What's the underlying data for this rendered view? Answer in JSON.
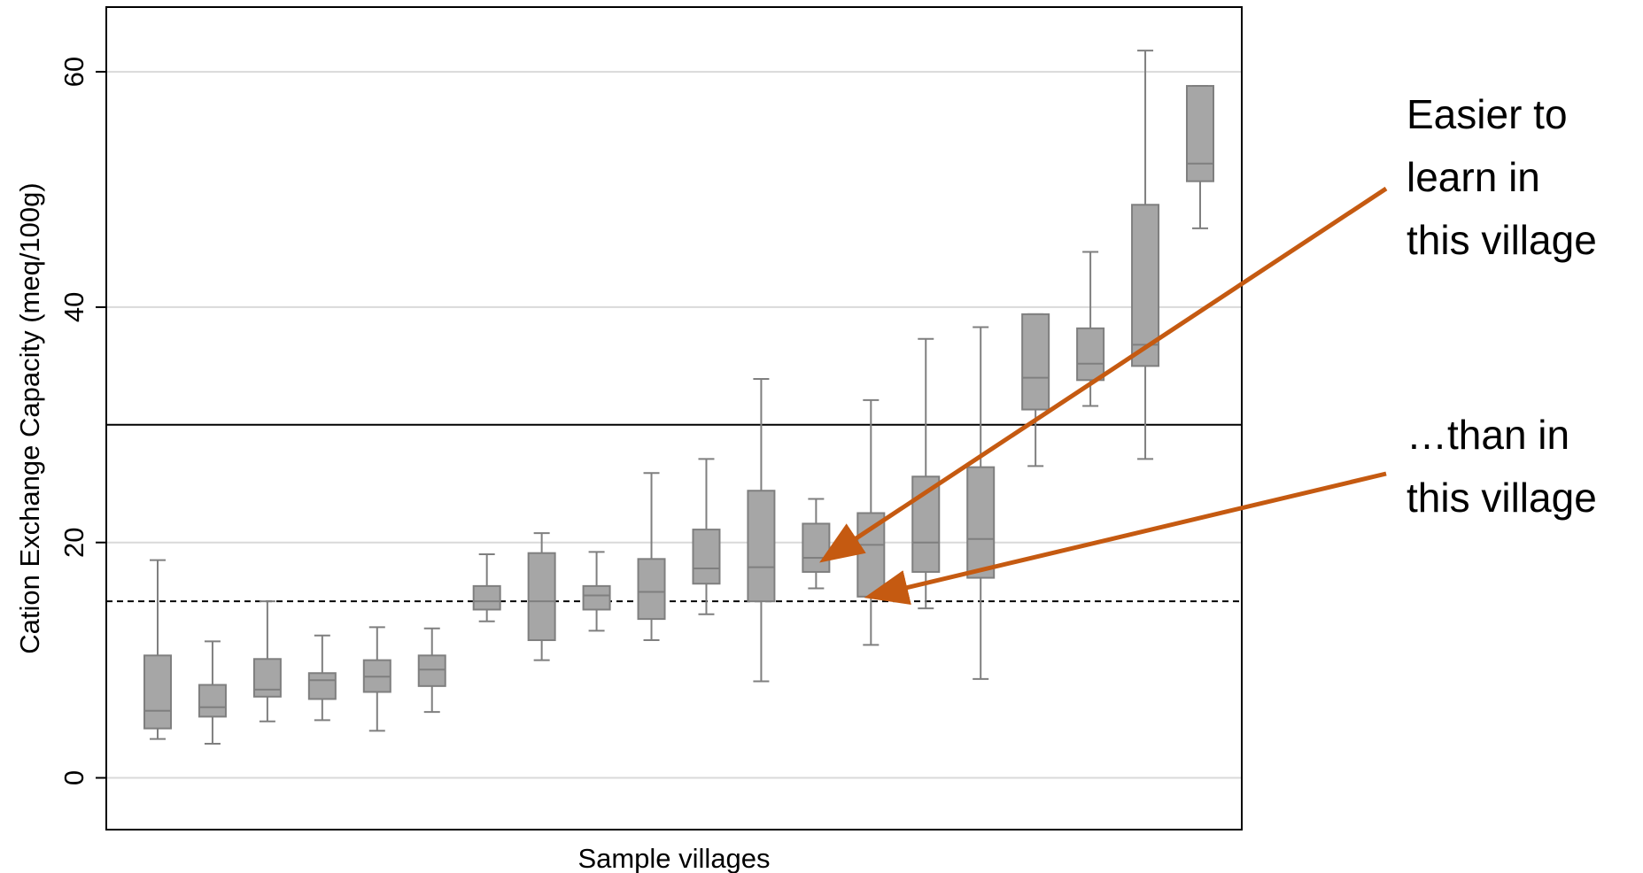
{
  "chart_data": {
    "type": "boxplot",
    "xlabel": "Sample villages",
    "ylabel": "Cation Exchange Capacity (meq/100g)",
    "ylim": [
      -4.4,
      65.5
    ],
    "yticks": [
      0,
      20,
      40,
      60
    ],
    "grid": true,
    "reference_lines": [
      {
        "value": 30,
        "style": "solid"
      },
      {
        "value": 15,
        "style": "dashed"
      }
    ],
    "colors": {
      "box_fill": "#a6a6a6",
      "box_stroke": "#7f7f7f",
      "arrow": "#c55a11",
      "ref_line": "#000000",
      "grid": "#d9d9d9"
    },
    "boxes": [
      {
        "min": 3.3,
        "q1": 4.2,
        "median": 5.7,
        "q3": 10.4,
        "max": 18.5
      },
      {
        "min": 2.9,
        "q1": 5.2,
        "median": 6.0,
        "q3": 7.9,
        "max": 11.6
      },
      {
        "min": 4.8,
        "q1": 6.9,
        "median": 7.5,
        "q3": 10.1,
        "max": 15.0
      },
      {
        "min": 4.9,
        "q1": 6.7,
        "median": 8.3,
        "q3": 8.9,
        "max": 12.1
      },
      {
        "min": 4.0,
        "q1": 7.3,
        "median": 8.6,
        "q3": 10.0,
        "max": 12.8
      },
      {
        "min": 5.6,
        "q1": 7.8,
        "median": 9.2,
        "q3": 10.4,
        "max": 12.7
      },
      {
        "min": 13.3,
        "q1": 14.3,
        "median": 15.0,
        "q3": 16.3,
        "max": 19.0
      },
      {
        "min": 10.0,
        "q1": 11.7,
        "median": 15.0,
        "q3": 19.1,
        "max": 20.8
      },
      {
        "min": 12.5,
        "q1": 14.3,
        "median": 15.5,
        "q3": 16.3,
        "max": 19.2
      },
      {
        "min": 11.7,
        "q1": 13.5,
        "median": 15.8,
        "q3": 18.6,
        "max": 25.9
      },
      {
        "min": 13.9,
        "q1": 16.5,
        "median": 17.8,
        "q3": 21.1,
        "max": 27.1
      },
      {
        "min": 8.2,
        "q1": 15.0,
        "median": 17.9,
        "q3": 24.4,
        "max": 33.9
      },
      {
        "min": 16.1,
        "q1": 17.5,
        "median": 18.7,
        "q3": 21.6,
        "max": 23.7
      },
      {
        "min": 11.3,
        "q1": 15.4,
        "median": 19.8,
        "q3": 22.5,
        "max": 32.1
      },
      {
        "min": 14.4,
        "q1": 17.5,
        "median": 20.0,
        "q3": 25.6,
        "max": 37.3
      },
      {
        "min": 8.4,
        "q1": 17.0,
        "median": 20.3,
        "q3": 26.4,
        "max": 38.3
      },
      {
        "min": 26.5,
        "q1": 31.3,
        "median": 34.0,
        "q3": 39.4,
        "max": 39.4
      },
      {
        "min": 31.6,
        "q1": 33.8,
        "median": 35.2,
        "q3": 38.2,
        "max": 44.7
      },
      {
        "min": 27.1,
        "q1": 35.0,
        "median": 36.8,
        "q3": 48.7,
        "max": 61.8
      },
      {
        "min": 46.7,
        "q1": 50.7,
        "median": 52.2,
        "q3": 58.8,
        "max": 58.8
      }
    ]
  },
  "annotations": {
    "easier": {
      "lines": [
        "Easier to",
        "learn in",
        "this village"
      ],
      "target_box": 12
    },
    "than": {
      "lines": [
        "…than in",
        "this village"
      ],
      "target_box": 13
    }
  }
}
